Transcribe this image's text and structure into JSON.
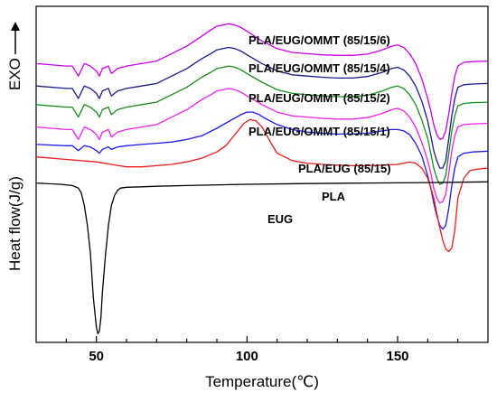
{
  "chart_data": {
    "type": "line",
    "title": "",
    "xlabel": "Temperature(℃)",
    "ylabel": "Heat flow(J/g)",
    "ylabel_marker": "EXO",
    "xlim": [
      30,
      180
    ],
    "x_ticks": [
      50,
      100,
      150
    ],
    "y_ticks_labeled": false,
    "grid": false,
    "legend": "none (series labelled inline above curves)",
    "series": [
      {
        "name": "PLA/EUG/OMMT (85/15/6)",
        "color": "#cc00ee",
        "x": [
          30,
          40,
          42,
          44,
          46,
          48,
          50,
          51,
          52,
          54,
          55,
          57,
          60,
          65,
          70,
          75,
          80,
          85,
          88,
          90,
          92,
          94,
          96,
          98,
          100,
          105,
          110,
          115,
          120,
          125,
          130,
          135,
          140,
          145,
          148,
          150,
          152,
          154,
          156,
          158,
          160,
          161,
          162,
          163,
          164,
          165,
          166,
          167,
          168,
          169,
          170,
          172,
          175,
          180
        ],
        "y": [
          0.82,
          0.81,
          0.81,
          0.77,
          0.82,
          0.81,
          0.79,
          0.77,
          0.8,
          0.81,
          0.78,
          0.8,
          0.81,
          0.82,
          0.83,
          0.86,
          0.89,
          0.93,
          0.955,
          0.97,
          0.975,
          0.98,
          0.975,
          0.965,
          0.95,
          0.91,
          0.88,
          0.865,
          0.86,
          0.855,
          0.853,
          0.853,
          0.858,
          0.875,
          0.89,
          0.895,
          0.885,
          0.86,
          0.82,
          0.76,
          0.68,
          0.63,
          0.575,
          0.535,
          0.515,
          0.52,
          0.55,
          0.62,
          0.7,
          0.77,
          0.81,
          0.825,
          0.828,
          0.83
        ]
      },
      {
        "name": "PLA/EUG/OMMT (85/15/4)",
        "color": "#1a1a8c",
        "x": [
          30,
          40,
          42,
          44,
          46,
          48,
          50,
          51,
          52,
          54,
          55,
          57,
          60,
          65,
          70,
          75,
          80,
          85,
          88,
          90,
          92,
          94,
          96,
          98,
          100,
          105,
          110,
          115,
          120,
          125,
          130,
          135,
          140,
          145,
          148,
          150,
          152,
          154,
          156,
          158,
          160,
          161,
          162,
          163,
          164,
          165,
          166,
          167,
          168,
          169,
          170,
          172,
          175,
          180
        ],
        "y": [
          0.73,
          0.72,
          0.72,
          0.68,
          0.73,
          0.72,
          0.7,
          0.68,
          0.71,
          0.72,
          0.69,
          0.71,
          0.72,
          0.73,
          0.74,
          0.77,
          0.8,
          0.84,
          0.86,
          0.875,
          0.88,
          0.885,
          0.88,
          0.87,
          0.855,
          0.82,
          0.79,
          0.775,
          0.77,
          0.765,
          0.762,
          0.762,
          0.768,
          0.785,
          0.8,
          0.805,
          0.795,
          0.77,
          0.73,
          0.67,
          0.59,
          0.53,
          0.47,
          0.43,
          0.4,
          0.4,
          0.43,
          0.52,
          0.61,
          0.68,
          0.725,
          0.735,
          0.738,
          0.74
        ]
      },
      {
        "name": "PLA/EUG/OMMT (85/15/2)",
        "color": "#1a8c1a",
        "x": [
          30,
          40,
          42,
          44,
          46,
          48,
          50,
          51,
          52,
          54,
          55,
          57,
          60,
          65,
          70,
          75,
          80,
          85,
          88,
          90,
          92,
          94,
          96,
          98,
          100,
          105,
          110,
          115,
          120,
          125,
          130,
          135,
          140,
          145,
          148,
          150,
          152,
          154,
          156,
          158,
          160,
          161,
          162,
          163,
          164,
          165,
          166,
          167,
          168,
          169,
          170,
          172,
          175,
          180
        ],
        "y": [
          0.655,
          0.645,
          0.645,
          0.605,
          0.655,
          0.645,
          0.625,
          0.605,
          0.635,
          0.645,
          0.615,
          0.635,
          0.645,
          0.655,
          0.665,
          0.695,
          0.725,
          0.765,
          0.785,
          0.8,
          0.805,
          0.81,
          0.805,
          0.795,
          0.78,
          0.745,
          0.715,
          0.7,
          0.695,
          0.69,
          0.687,
          0.687,
          0.693,
          0.71,
          0.725,
          0.73,
          0.72,
          0.695,
          0.655,
          0.595,
          0.52,
          0.46,
          0.4,
          0.36,
          0.335,
          0.34,
          0.37,
          0.46,
          0.55,
          0.61,
          0.65,
          0.66,
          0.663,
          0.665
        ]
      },
      {
        "name": "PLA/EUG/OMMT (85/15/1)",
        "color": "#ee22ee",
        "x": [
          30,
          40,
          42,
          44,
          46,
          48,
          50,
          51,
          52,
          54,
          55,
          57,
          60,
          65,
          70,
          75,
          80,
          85,
          88,
          90,
          92,
          94,
          96,
          98,
          100,
          105,
          110,
          115,
          120,
          125,
          130,
          135,
          140,
          145,
          148,
          150,
          152,
          154,
          156,
          158,
          160,
          161,
          162,
          163,
          164,
          165,
          166,
          167,
          168,
          169,
          170,
          172,
          175,
          180
        ],
        "y": [
          0.565,
          0.555,
          0.555,
          0.515,
          0.565,
          0.555,
          0.535,
          0.515,
          0.545,
          0.555,
          0.525,
          0.545,
          0.555,
          0.565,
          0.575,
          0.605,
          0.635,
          0.675,
          0.695,
          0.71,
          0.715,
          0.72,
          0.715,
          0.705,
          0.69,
          0.655,
          0.625,
          0.61,
          0.605,
          0.6,
          0.597,
          0.597,
          0.603,
          0.62,
          0.635,
          0.64,
          0.63,
          0.605,
          0.565,
          0.505,
          0.43,
          0.38,
          0.32,
          0.28,
          0.26,
          0.265,
          0.295,
          0.38,
          0.47,
          0.53,
          0.565,
          0.575,
          0.578,
          0.58
        ]
      },
      {
        "name": "PLA/EUG (85/15)",
        "color": "#1a1aee",
        "x": [
          30,
          40,
          42,
          44,
          46,
          48,
          50,
          51,
          52,
          54,
          55,
          57,
          60,
          65,
          70,
          75,
          80,
          85,
          90,
          95,
          98,
          100,
          102,
          104,
          106,
          110,
          115,
          120,
          125,
          130,
          135,
          140,
          145,
          148,
          150,
          152,
          154,
          156,
          158,
          160,
          161,
          162,
          163,
          164,
          165,
          166,
          167,
          168,
          169,
          170,
          172,
          175,
          180
        ],
        "y": [
          0.495,
          0.49,
          0.49,
          0.47,
          0.49,
          0.485,
          0.47,
          0.46,
          0.475,
          0.485,
          0.475,
          0.485,
          0.49,
          0.495,
          0.5,
          0.505,
          0.515,
          0.53,
          0.56,
          0.595,
          0.615,
          0.625,
          0.625,
          0.615,
          0.6,
          0.575,
          0.555,
          0.545,
          0.54,
          0.537,
          0.537,
          0.54,
          0.55,
          0.555,
          0.555,
          0.55,
          0.535,
          0.5,
          0.45,
          0.37,
          0.32,
          0.26,
          0.21,
          0.17,
          0.155,
          0.17,
          0.24,
          0.33,
          0.4,
          0.445,
          0.46,
          0.465,
          0.468
        ]
      },
      {
        "name": "PLA",
        "color": "#ee1a1a",
        "x": [
          30,
          40,
          50,
          55,
          60,
          65,
          70,
          75,
          80,
          85,
          90,
          93,
          95,
          97,
          99,
          101,
          103,
          105,
          108,
          110,
          115,
          120,
          125,
          130,
          135,
          140,
          145,
          150,
          152,
          154,
          156,
          158,
          160,
          162,
          163,
          164,
          165,
          166,
          167,
          168,
          169,
          170,
          172,
          174,
          176,
          178,
          180
        ],
        "y": [
          0.445,
          0.435,
          0.425,
          0.415,
          0.405,
          0.405,
          0.41,
          0.415,
          0.425,
          0.44,
          0.465,
          0.49,
          0.52,
          0.55,
          0.58,
          0.595,
          0.59,
          0.565,
          0.5,
          0.46,
          0.43,
          0.42,
          0.415,
          0.412,
          0.41,
          0.41,
          0.412,
          0.415,
          0.42,
          0.425,
          0.42,
          0.4,
          0.36,
          0.28,
          0.22,
          0.16,
          0.11,
          0.075,
          0.065,
          0.08,
          0.15,
          0.28,
          0.36,
          0.39,
          0.395,
          0.398,
          0.4
        ]
      },
      {
        "name": "EUG",
        "color": "#000000",
        "x": [
          30,
          38,
          42,
          44,
          45,
          46,
          47,
          48,
          49,
          50,
          50.5,
          51,
          51.5,
          52,
          53,
          54,
          55,
          56,
          57,
          58,
          60,
          65,
          70,
          80,
          100,
          120,
          140,
          160,
          180
        ],
        "y": [
          0.34,
          0.335,
          0.33,
          0.32,
          0.3,
          0.25,
          0.17,
          0.06,
          -0.12,
          -0.24,
          -0.265,
          -0.255,
          -0.2,
          -0.1,
          0.05,
          0.17,
          0.25,
          0.29,
          0.31,
          0.32,
          0.323,
          0.325,
          0.327,
          0.33,
          0.335,
          0.338,
          0.34,
          0.342,
          0.345
        ]
      }
    ],
    "ylim": [
      -0.3,
      1.05
    ]
  }
}
